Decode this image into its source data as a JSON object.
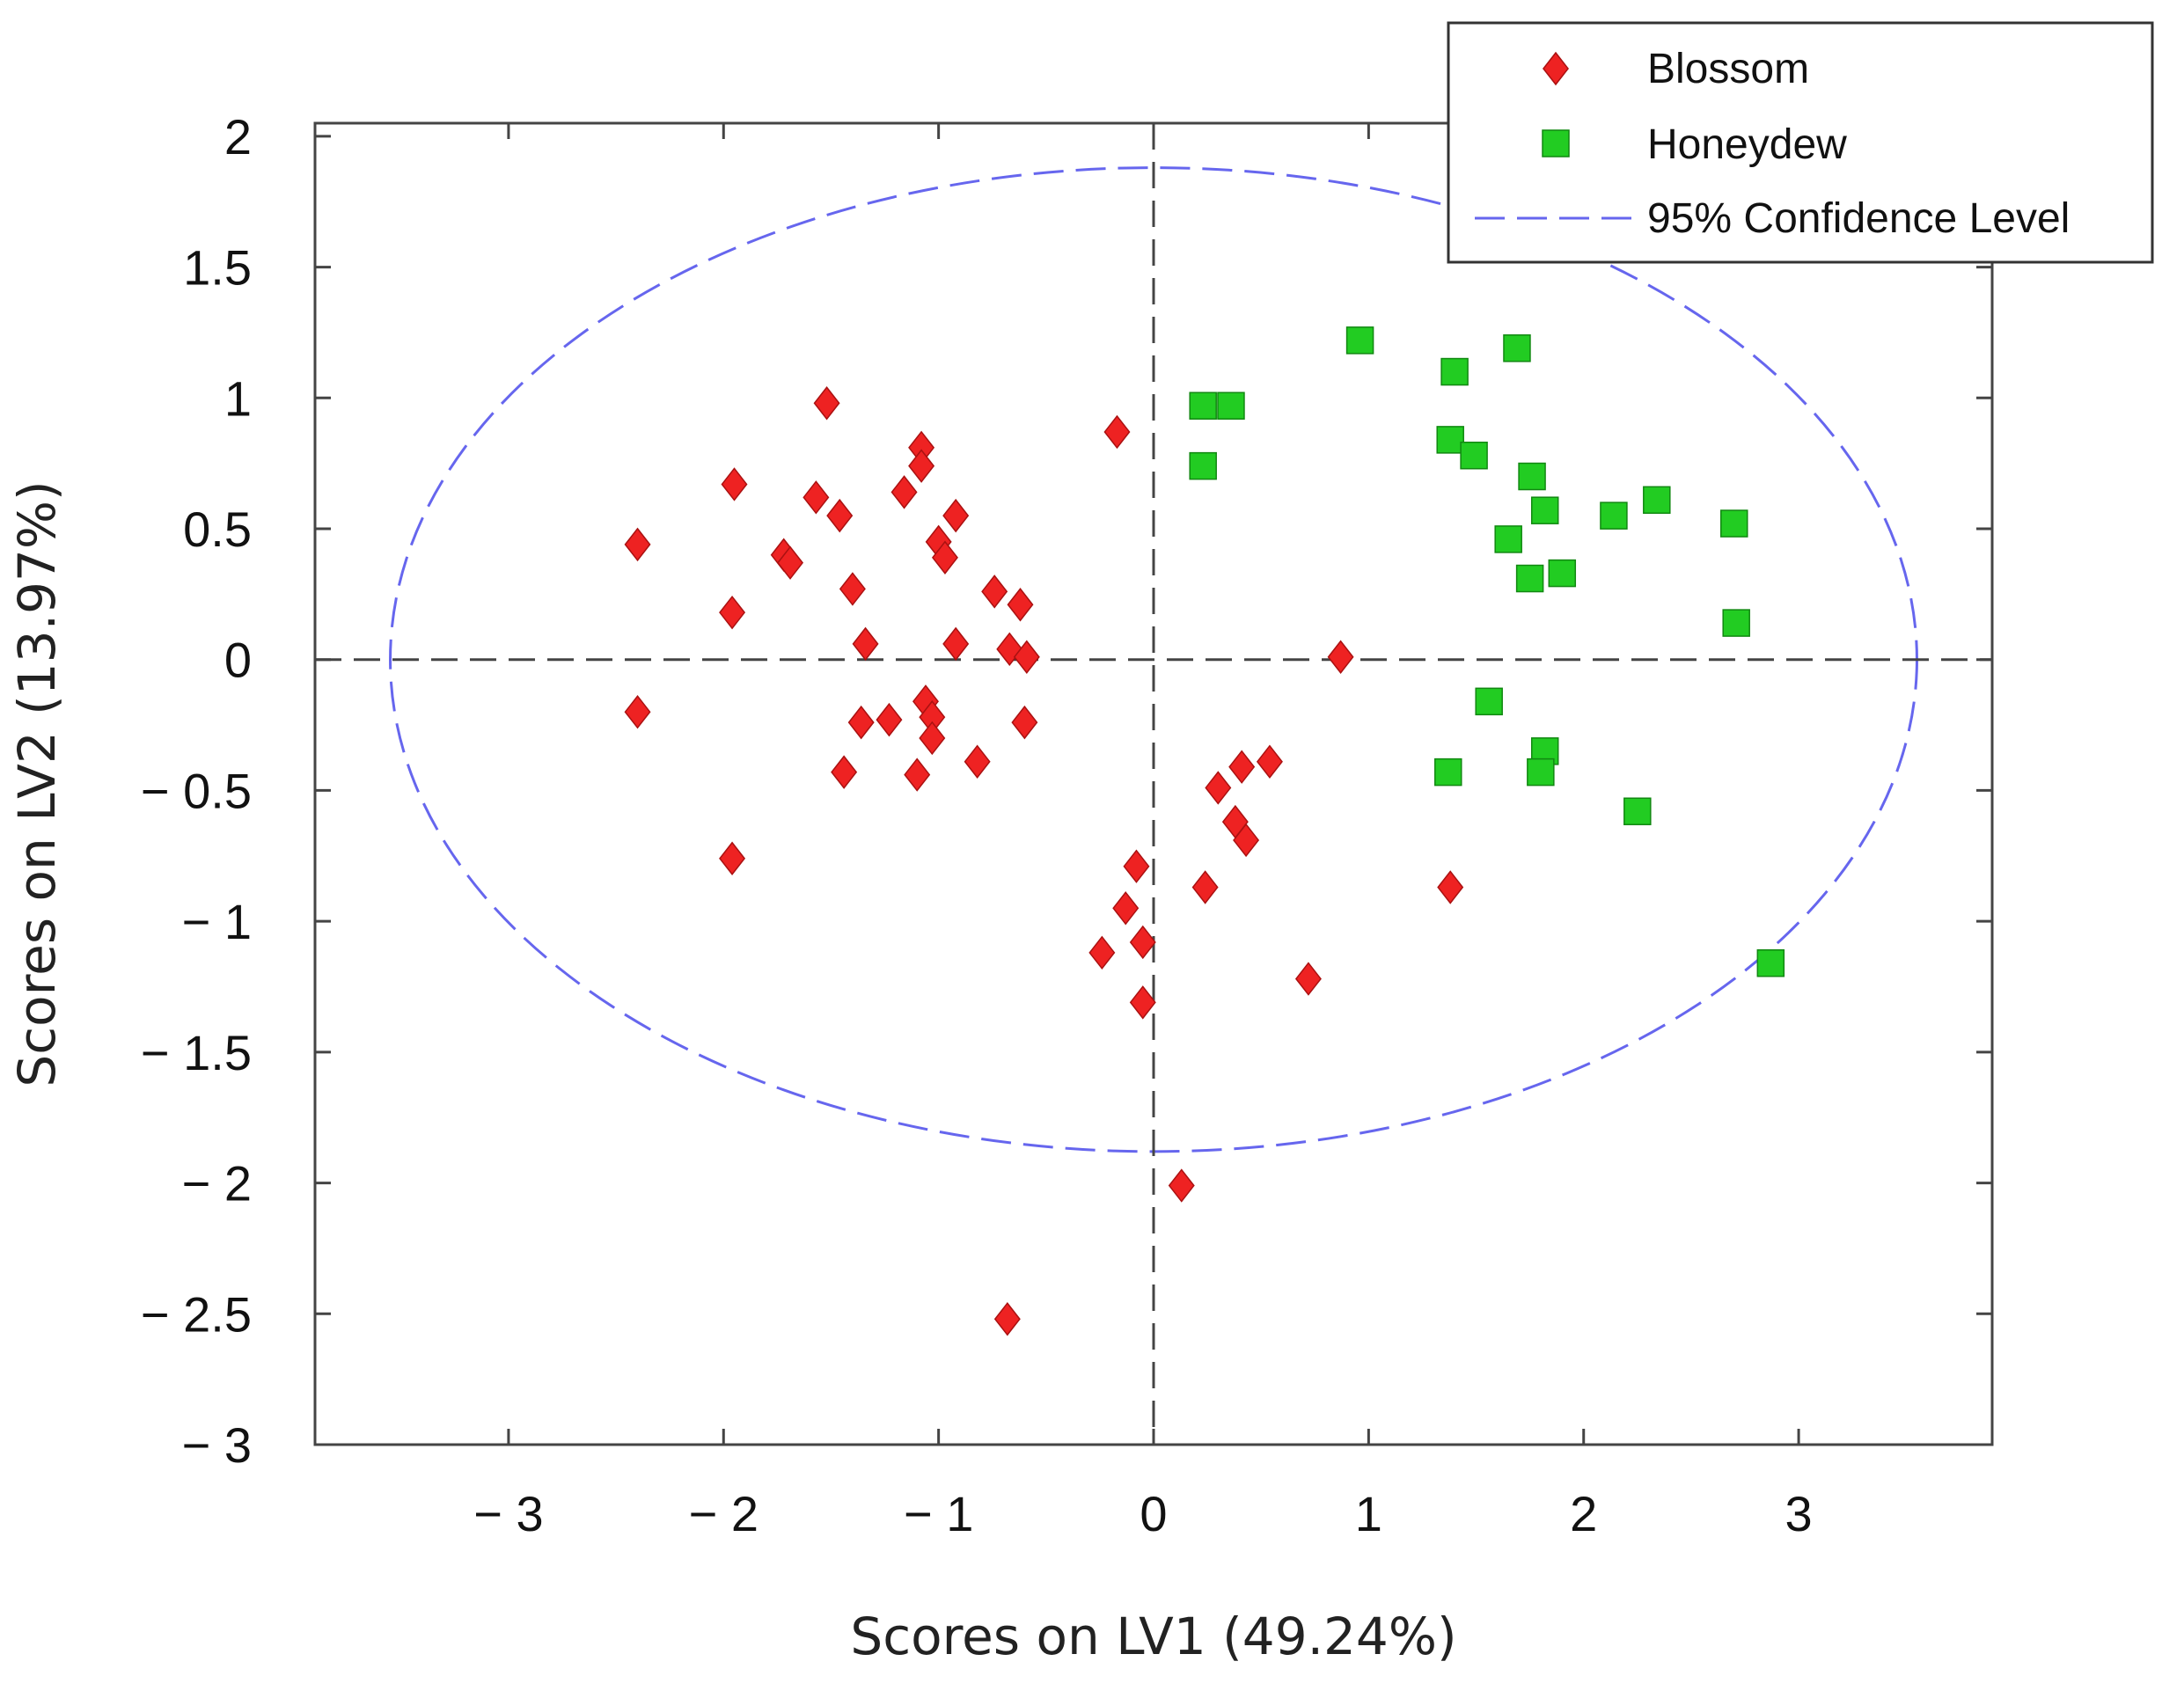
{
  "chart_data": {
    "type": "scatter",
    "title": "",
    "xlabel": "Scores on LV1 (49.24%)",
    "ylabel": "Scores on LV2 (13.97%)",
    "xlim": [
      -3.9,
      3.9
    ],
    "ylim": [
      -3,
      2.05
    ],
    "xticks": [
      -3,
      -2,
      -1,
      0,
      1,
      2,
      3
    ],
    "xtick_labels": [
      "− 3",
      "− 2",
      "− 1",
      "0",
      "1",
      "2",
      "3"
    ],
    "yticks": [
      2,
      1.5,
      1,
      0.5,
      0,
      -0.5,
      -1,
      -1.5,
      -2,
      -2.5,
      -3
    ],
    "ytick_labels": [
      "2",
      "1.5",
      "1",
      "0.5",
      "0",
      "− 0.5",
      "− 1",
      "− 1.5",
      "− 2",
      "− 2.5",
      "− 3"
    ],
    "grid": false,
    "reference_lines": {
      "x": 0,
      "y": 0,
      "style": "dashed"
    },
    "legend_position": "top-right",
    "confidence_ellipse": {
      "label": "95% Confidence Level",
      "center": [
        0,
        0
      ],
      "semi_axes": [
        3.55,
        1.88
      ],
      "color": "#6666ee"
    },
    "series": [
      {
        "name": "Blossom",
        "marker": "diamond",
        "color": "#ee2222",
        "points": [
          [
            -1.52,
            0.98
          ],
          [
            -1.08,
            0.81
          ],
          [
            -1.08,
            0.74
          ],
          [
            -1.95,
            0.67
          ],
          [
            -1.57,
            0.62
          ],
          [
            -1.16,
            0.64
          ],
          [
            -1.46,
            0.55
          ],
          [
            -0.92,
            0.55
          ],
          [
            -2.4,
            0.44
          ],
          [
            -1.0,
            0.45
          ],
          [
            -1.72,
            0.4
          ],
          [
            -1.69,
            0.37
          ],
          [
            -0.97,
            0.39
          ],
          [
            -1.4,
            0.27
          ],
          [
            -0.74,
            0.26
          ],
          [
            -0.62,
            0.21
          ],
          [
            -1.96,
            0.18
          ],
          [
            -1.34,
            0.06
          ],
          [
            -0.92,
            0.06
          ],
          [
            -0.67,
            0.04
          ],
          [
            -0.59,
            0.01
          ],
          [
            -2.4,
            -0.2
          ],
          [
            -1.06,
            -0.16
          ],
          [
            -1.03,
            -0.22
          ],
          [
            -1.23,
            -0.23
          ],
          [
            -1.36,
            -0.24
          ],
          [
            -0.6,
            -0.24
          ],
          [
            -1.03,
            -0.3
          ],
          [
            -0.82,
            -0.39
          ],
          [
            -1.44,
            -0.43
          ],
          [
            -1.1,
            -0.44
          ],
          [
            -1.96,
            -0.76
          ],
          [
            -0.17,
            0.87
          ],
          [
            0.87,
            0.01
          ],
          [
            0.54,
            -0.39
          ],
          [
            0.41,
            -0.41
          ],
          [
            0.3,
            -0.49
          ],
          [
            0.38,
            -0.62
          ],
          [
            0.43,
            -0.69
          ],
          [
            -0.08,
            -0.79
          ],
          [
            0.24,
            -0.87
          ],
          [
            1.38,
            -0.87
          ],
          [
            -0.13,
            -0.95
          ],
          [
            -0.05,
            -1.08
          ],
          [
            -0.24,
            -1.12
          ],
          [
            0.72,
            -1.22
          ],
          [
            -0.05,
            -1.31
          ],
          [
            0.13,
            -2.01
          ],
          [
            -0.68,
            -2.52
          ]
        ]
      },
      {
        "name": "Honeydew",
        "marker": "square",
        "color": "#22cc22",
        "points": [
          [
            0.96,
            1.22
          ],
          [
            1.69,
            1.19
          ],
          [
            1.4,
            1.1
          ],
          [
            0.23,
            0.97
          ],
          [
            0.36,
            0.97
          ],
          [
            1.38,
            0.84
          ],
          [
            1.49,
            0.78
          ],
          [
            0.23,
            0.74
          ],
          [
            1.76,
            0.7
          ],
          [
            2.34,
            0.61
          ],
          [
            1.82,
            0.57
          ],
          [
            2.14,
            0.55
          ],
          [
            2.7,
            0.52
          ],
          [
            1.65,
            0.46
          ],
          [
            1.9,
            0.33
          ],
          [
            1.75,
            0.31
          ],
          [
            2.71,
            0.14
          ],
          [
            1.56,
            -0.16
          ],
          [
            1.82,
            -0.35
          ],
          [
            1.37,
            -0.43
          ],
          [
            1.8,
            -0.43
          ],
          [
            2.25,
            -0.58
          ],
          [
            2.87,
            -1.16
          ]
        ]
      }
    ]
  }
}
